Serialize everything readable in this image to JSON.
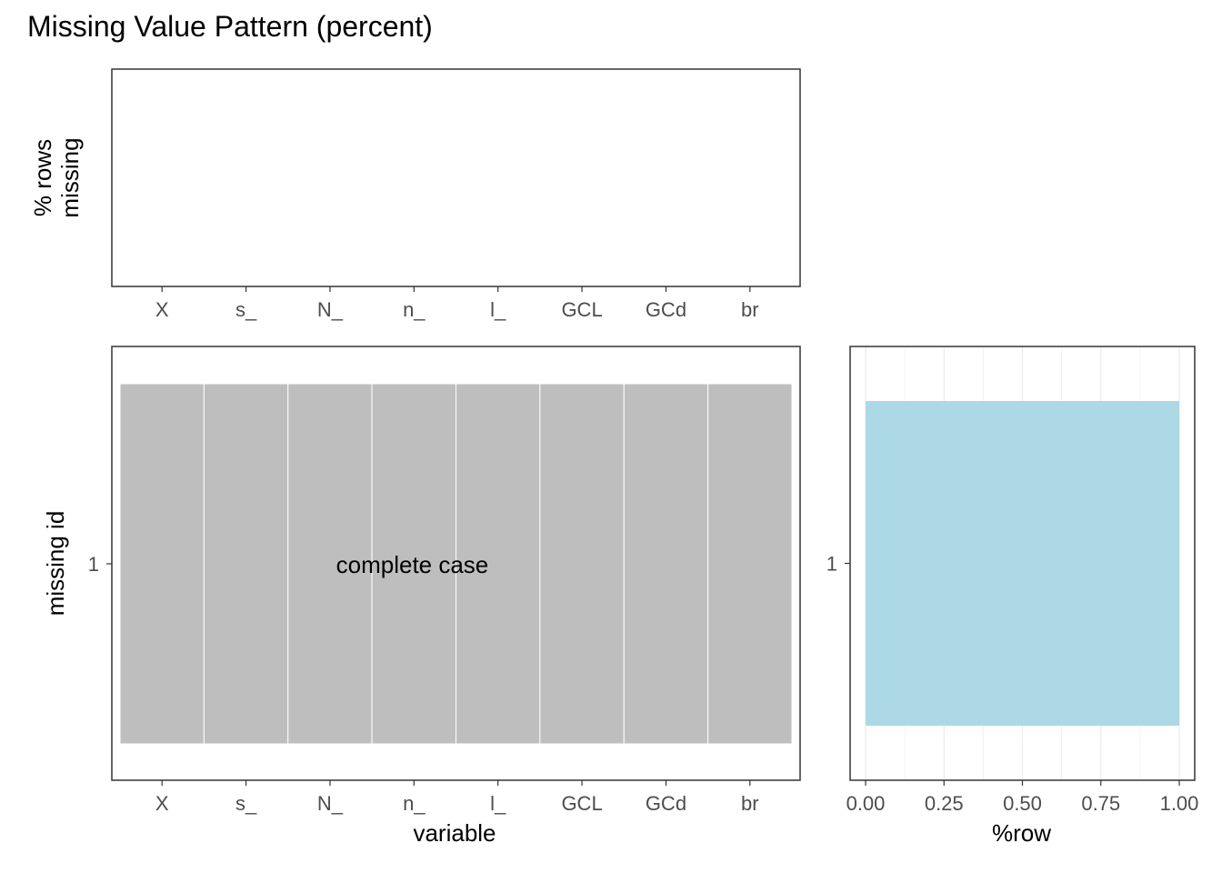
{
  "title": "Missing Value Pattern (percent)",
  "colors": {
    "tile": "#bebebe",
    "bar": "#add8e6",
    "panel_border": "#333333",
    "grid": "#ebebeb",
    "tick_text": "#4d4d4d"
  },
  "chart_data": [
    {
      "type": "bar",
      "panel": "top",
      "categories": [
        "X",
        "s_",
        "N_",
        "n_",
        "l_",
        "GCL",
        "GCd",
        "br"
      ],
      "values": [
        0,
        0,
        0,
        0,
        0,
        0,
        0,
        0
      ],
      "xlabel": "",
      "ylabel": "% rows\nmissing",
      "ylabel_lines": [
        "% rows",
        "missing"
      ],
      "grid": false
    },
    {
      "type": "heatmap",
      "panel": "bottom-left",
      "x_categories": [
        "X",
        "s_",
        "N_",
        "n_",
        "l_",
        "GCL",
        "GCd",
        "br"
      ],
      "y_categories": [
        "1"
      ],
      "cells": [
        {
          "pattern": "1",
          "missing": [
            false,
            false,
            false,
            false,
            false,
            false,
            false,
            false
          ]
        }
      ],
      "annotation": "complete case",
      "xlabel": "variable",
      "ylabel": "missing id",
      "grid": false
    },
    {
      "type": "bar",
      "orientation": "horizontal",
      "panel": "bottom-right",
      "categories": [
        "1"
      ],
      "values": [
        1.0
      ],
      "x_ticks": [
        "0.00",
        "0.25",
        "0.50",
        "0.75",
        "1.00"
      ],
      "xlim": [
        0,
        1
      ],
      "xlabel": "%row",
      "ylabel": "",
      "grid": true
    }
  ]
}
